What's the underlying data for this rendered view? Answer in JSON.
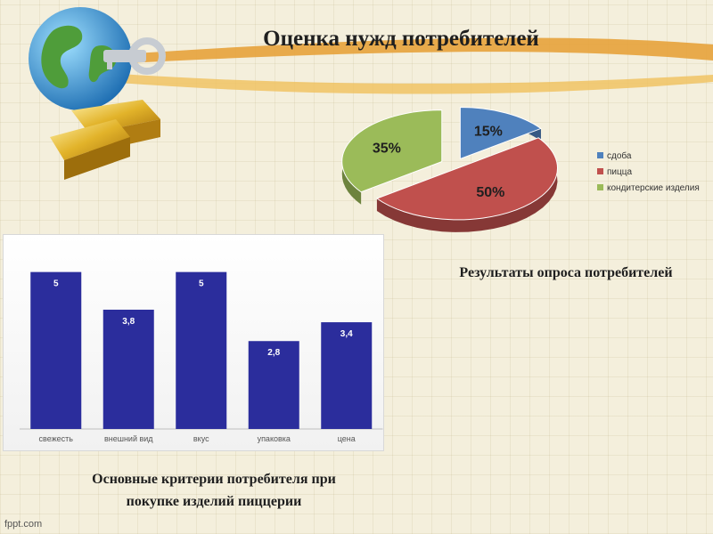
{
  "slide": {
    "title": "Оценка нужд потребителей",
    "pie_caption": "Результаты опроса потребителей",
    "bar_caption_line1": "Основные критерии потребителя при",
    "bar_caption_line2": "покупке изделий пиццерии",
    "watermark": "fppt.com",
    "decoration_icons": [
      "globe-icon",
      "key-icon",
      "gold-bars-icon"
    ]
  },
  "chart_data": [
    {
      "type": "pie",
      "title": "",
      "categories": [
        "сдоба",
        "пицца",
        "кондитерские изделия"
      ],
      "values": [
        15,
        50,
        35
      ],
      "data_labels": [
        "15%",
        "50%",
        "35%"
      ],
      "colors": [
        "#4f81bd",
        "#c0504d",
        "#9bbb59"
      ],
      "legend": "right",
      "style": "3d exploded"
    },
    {
      "type": "bar",
      "title": "",
      "categories": [
        "свежесть",
        "внешний вид",
        "вкус",
        "упаковка",
        "цена"
      ],
      "values": [
        5,
        3.8,
        5,
        2.8,
        3.4
      ],
      "data_labels": [
        "5",
        "3,8",
        "5",
        "2,8",
        "3,4"
      ],
      "ylim": [
        0,
        5.5
      ],
      "xlabel": "",
      "ylabel": "",
      "grid": false,
      "color": "#2b2d9c"
    }
  ]
}
